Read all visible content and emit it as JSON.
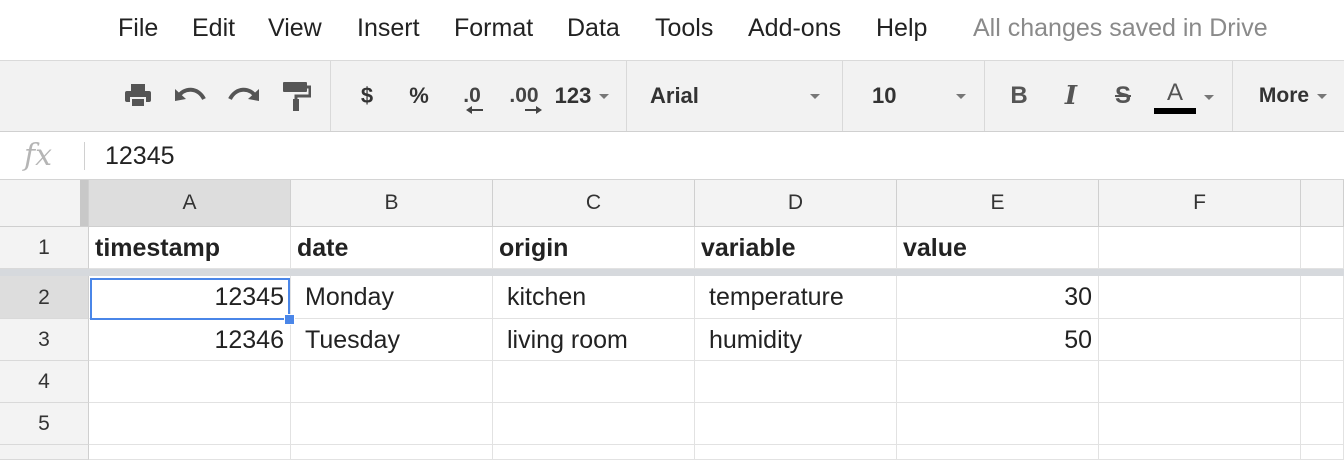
{
  "menu": {
    "items": [
      "File",
      "Edit",
      "View",
      "Insert",
      "Format",
      "Data",
      "Tools",
      "Add-ons",
      "Help"
    ],
    "status": "All changes saved in Drive"
  },
  "toolbar": {
    "currency": "$",
    "percent": "%",
    "decrease_decimals": ".0",
    "increase_decimals": ".00",
    "more_formats": "123",
    "font_family": "Arial",
    "font_size": "10",
    "bold": "B",
    "italic": "I",
    "strikethrough": "S",
    "text_color": "A",
    "text_color_swatch": "#000000",
    "more": "More",
    "icons": [
      "print-icon",
      "undo-icon",
      "redo-icon",
      "paint-format-icon"
    ]
  },
  "formula_bar": {
    "fx": "fx",
    "value": "12345"
  },
  "sheet": {
    "columns": [
      "A",
      "B",
      "C",
      "D",
      "E",
      "F"
    ],
    "row_numbers": [
      "1",
      "2",
      "3",
      "4",
      "5"
    ],
    "header_row": [
      "timestamp",
      "date",
      "origin",
      "variable",
      "value",
      ""
    ],
    "rows": [
      [
        "12345",
        "Monday",
        "kitchen",
        "temperature",
        "30",
        ""
      ],
      [
        "12346",
        "Tuesday",
        "living room",
        "humidity",
        "50",
        ""
      ],
      [
        "",
        "",
        "",
        "",
        "",
        ""
      ],
      [
        "",
        "",
        "",
        "",
        "",
        ""
      ]
    ],
    "selected_cell": "A2",
    "accent_color": "#4a86e8"
  }
}
